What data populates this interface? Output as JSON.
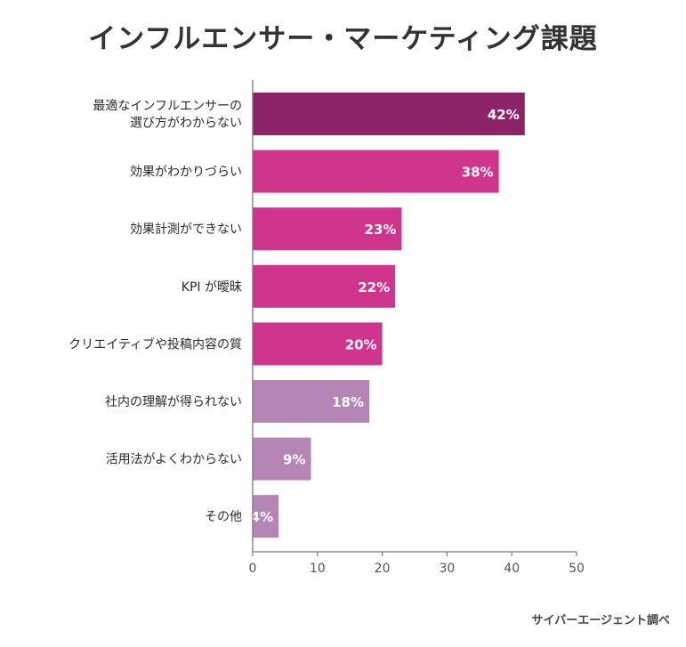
{
  "title": "インフルエンサー・マーケティング課題",
  "credit": "サイバーエージェント調べ",
  "colors": {
    "top": "#8e2468",
    "mid": "#d0358e",
    "low": "#b585b5",
    "axis": "#777777",
    "label": "#2b2b2b"
  },
  "chart_data": {
    "type": "bar",
    "orientation": "horizontal",
    "categories": [
      "最適なインフルエンサーの\n選び方がわからない",
      "効果がわかりづらい",
      "効果計測ができない",
      "KPI が曖昧",
      "クリエイティブや投稿内容の質",
      "社内の理解が得られない",
      "活用法がよくわからない",
      "その他"
    ],
    "values": [
      42,
      38,
      23,
      22,
      20,
      18,
      9,
      4
    ],
    "value_labels": [
      "42%",
      "38%",
      "23%",
      "22%",
      "20%",
      "18%",
      "9%",
      "4%"
    ],
    "bar_color_groups": [
      "top",
      "mid",
      "mid",
      "mid",
      "mid",
      "low",
      "low",
      "low"
    ],
    "xlim": [
      0,
      50
    ],
    "xticks": [
      0,
      10,
      20,
      30,
      40,
      50
    ],
    "xlabel": "",
    "ylabel": "",
    "grid": false,
    "legend": "none"
  }
}
